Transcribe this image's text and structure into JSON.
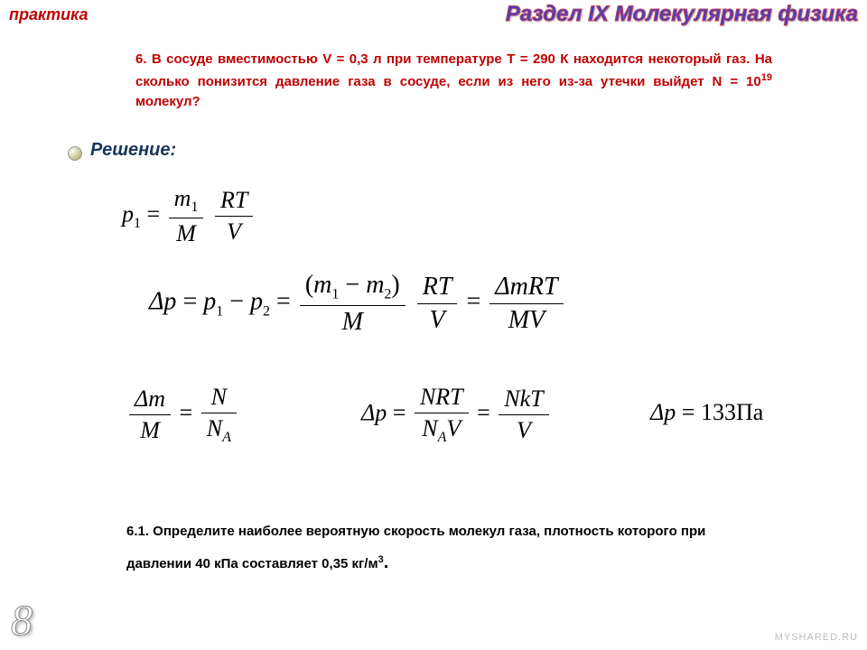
{
  "header": {
    "left_label": "практика",
    "right_label": "Раздел IX Молекулярная физика"
  },
  "problem": {
    "number": "6.",
    "text": "6. В сосуде вместимостью V = 0,3 л при температуре Т = 290 К находится некоторый газ. На сколько понизится давление газа в сосуде, если из него из-за утечки выйдет N = 10",
    "exp": "19",
    "text_end": " молекул?"
  },
  "solution_label": "Решение:",
  "formulas": {
    "f1": {
      "lhs_var": "p",
      "lhs_sub": "1",
      "frac1_num": "m",
      "frac1_num_sub": "1",
      "frac1_den": "M",
      "frac2_num": "RT",
      "frac2_den": "V"
    },
    "f2": {
      "dp": "Δp",
      "eq": " = ",
      "p1": "p",
      "s1": "1",
      "minus": " − ",
      "p2": "p",
      "s2": "2",
      "fA_num_open": "(",
      "fA_num_m1": "m",
      "fA_num_s1": "1",
      "fA_num_minus": " − ",
      "fA_num_m2": "m",
      "fA_num_s2": "2",
      "fA_num_close": ")",
      "fA_den": "M",
      "fB_num": "RT",
      "fB_den": "V",
      "fC_num": "ΔmRT",
      "fC_den": "MV"
    },
    "f3": {
      "num_l": "Δm",
      "den_l": "M",
      "num_r": "N",
      "den_r_var": "N",
      "den_r_sub": "A"
    },
    "f4": {
      "lhs": "Δp",
      "fA_num": "NRT",
      "fA_den_var": "N",
      "fA_den_sub": "A",
      "fA_den_rest": "V",
      "fB_num": "NkT",
      "fB_den": "V"
    },
    "f5": {
      "lhs": "Δp",
      "rhs": "133Па"
    }
  },
  "problem2": {
    "text": "6.1. Определите наиболее вероятную скорость молекул газа, плотность которого при давлении 40 кПа составляет 0,35 кг/м",
    "exp": "3",
    "end": "."
  },
  "page_number": "8",
  "watermark": "MYSHARED.RU",
  "colors": {
    "accent_red": "#c00000",
    "accent_blue": "#4040c0",
    "dark_blue": "#17365d",
    "text": "#000000",
    "background": "#ffffff"
  }
}
